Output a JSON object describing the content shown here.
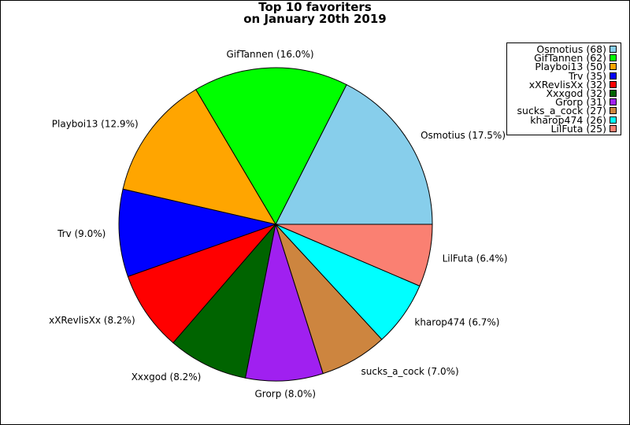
{
  "chart_data": {
    "type": "pie",
    "title": "Top 10 favoriters",
    "subtitle": "on January 20th 2019",
    "slices": [
      {
        "label": "Osmotius",
        "value": 68,
        "pct_label": "Osmotius (17.5%)",
        "color": "#87CEEB"
      },
      {
        "label": "GifTannen",
        "value": 62,
        "pct_label": "GifTannen (16.0%)",
        "color": "#00FF00"
      },
      {
        "label": "Playboi13",
        "value": 50,
        "pct_label": "Playboi13 (12.9%)",
        "color": "#FFA500"
      },
      {
        "label": "Trv",
        "value": 35,
        "pct_label": "Trv (9.0%)",
        "color": "#0000FF"
      },
      {
        "label": "xXRevlisXx",
        "value": 32,
        "pct_label": "xXRevlisXx (8.2%)",
        "color": "#FF0000"
      },
      {
        "label": "Xxxgod",
        "value": 32,
        "pct_label": "Xxxgod (8.2%)",
        "color": "#006400"
      },
      {
        "label": "Grorp",
        "value": 31,
        "pct_label": "Grorp (8.0%)",
        "color": "#A020F0"
      },
      {
        "label": "sucks_a_cock",
        "value": 27,
        "pct_label": "sucks_a_cock (7.0%)",
        "color": "#CD853F"
      },
      {
        "label": "kharop474",
        "value": 26,
        "pct_label": "kharop474 (6.7%)",
        "color": "#00FFFF"
      },
      {
        "label": "LilFuta",
        "value": 25,
        "pct_label": "LilFuta (6.4%)",
        "color": "#FA8072"
      }
    ],
    "legend": {
      "placement": "top-right",
      "entries": [
        "Osmotius (68)",
        "GifTannen (62)",
        "Playboi13 (50)",
        "Trv (35)",
        "xXRevlisXx (32)",
        "Xxxgod (32)",
        "Grorp (31)",
        "sucks_a_cock (27)",
        "kharop474 (26)",
        "LilFuta (25)"
      ]
    }
  }
}
